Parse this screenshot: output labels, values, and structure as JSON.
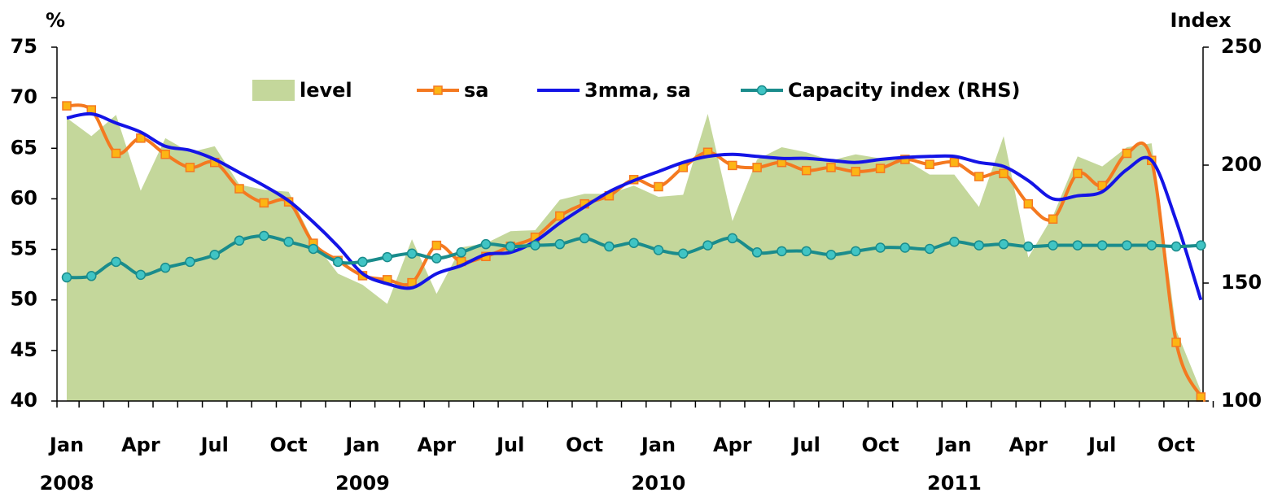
{
  "chart_data": {
    "type": "line",
    "y_label": "%",
    "y2_label": "Index",
    "categories": [
      "Jan",
      null,
      null,
      "Apr",
      null,
      null,
      "Jul",
      null,
      null,
      "Oct",
      null,
      null,
      "Jan",
      null,
      null,
      "Apr",
      null,
      null,
      "Jul",
      null,
      null,
      "Oct",
      null,
      null,
      "Jan",
      null,
      null,
      "Apr",
      null,
      null,
      "Jul",
      null,
      null,
      "Oct",
      null,
      null,
      "Jan",
      null,
      null,
      "Apr",
      null,
      null,
      "Jul",
      null,
      null,
      "Oct",
      null
    ],
    "year_labels": [
      "2008",
      "2009",
      "2010",
      "2011"
    ],
    "series": [
      {
        "name": "level",
        "kind": "area",
        "color": "#c4d79b",
        "values": [
          68.0,
          66.2,
          68.3,
          60.8,
          66.0,
          64.6,
          65.2,
          61.4,
          60.9,
          60.7,
          55.8,
          52.6,
          51.5,
          49.6,
          56.0,
          50.6,
          55.2,
          55.6,
          56.8,
          56.9,
          59.9,
          60.5,
          60.5,
          61.3,
          60.2,
          60.4,
          68.4,
          57.8,
          63.9,
          65.1,
          64.6,
          63.8,
          64.4,
          64.0,
          63.9,
          62.4,
          62.4,
          59.2,
          66.2,
          54.2,
          58.3,
          64.2,
          63.2,
          65.1,
          65.5,
          47.0,
          41.0
        ]
      },
      {
        "name": "sa",
        "kind": "line",
        "color": "#f47920",
        "marker": "square",
        "marker_color": "#fcb514",
        "values": [
          69.2,
          68.8,
          64.5,
          66.0,
          64.4,
          63.1,
          63.6,
          61.0,
          59.6,
          59.7,
          55.6,
          53.9,
          52.4,
          52.0,
          51.7,
          55.4,
          53.8,
          54.3,
          55.3,
          56.2,
          58.3,
          59.5,
          60.3,
          61.9,
          61.2,
          63.1,
          64.6,
          63.3,
          63.1,
          63.6,
          62.8,
          63.1,
          62.7,
          63.0,
          63.9,
          63.4,
          63.6,
          62.2,
          62.5,
          59.5,
          58.0,
          62.5,
          61.3,
          64.5,
          63.8,
          45.8,
          40.4
        ]
      },
      {
        "name": "3mma, sa",
        "kind": "line",
        "color": "#1414e6",
        "values": [
          68.0,
          68.4,
          67.5,
          66.6,
          65.2,
          64.8,
          63.9,
          62.6,
          61.3,
          59.8,
          57.7,
          55.3,
          52.6,
          51.6,
          51.2,
          52.6,
          53.4,
          54.5,
          54.7,
          55.8,
          57.6,
          59.2,
          60.7,
          61.8,
          62.7,
          63.6,
          64.2,
          64.4,
          64.2,
          64.0,
          64.0,
          63.8,
          63.6,
          63.9,
          64.1,
          64.2,
          64.2,
          63.6,
          63.2,
          61.8,
          60.0,
          60.3,
          60.7,
          62.9,
          63.8,
          57.8,
          50.0
        ]
      },
      {
        "name": "Capacity index (RHS)",
        "kind": "line",
        "axis": "y2",
        "color": "#1a8c8c",
        "marker": "circle",
        "marker_color": "#40c4c4",
        "values": [
          152.4,
          153,
          159,
          153.5,
          156.5,
          159,
          162,
          168,
          170,
          167.5,
          164.5,
          159,
          159,
          161,
          162.5,
          160.5,
          163,
          166.5,
          165.5,
          166,
          166.5,
          169,
          165.5,
          167,
          164,
          162.5,
          166,
          169,
          163,
          163.5,
          163.5,
          162,
          163.5,
          165,
          165,
          164.5,
          167.5,
          166,
          166.5,
          165.5,
          166,
          166,
          166,
          166,
          166,
          165.5,
          166
        ]
      }
    ],
    "ylim": [
      40,
      75
    ],
    "yticks": [
      40,
      45,
      50,
      55,
      60,
      65,
      70,
      75
    ],
    "y2lim": [
      100,
      250
    ],
    "y2ticks": [
      100,
      150,
      200,
      250
    ]
  }
}
